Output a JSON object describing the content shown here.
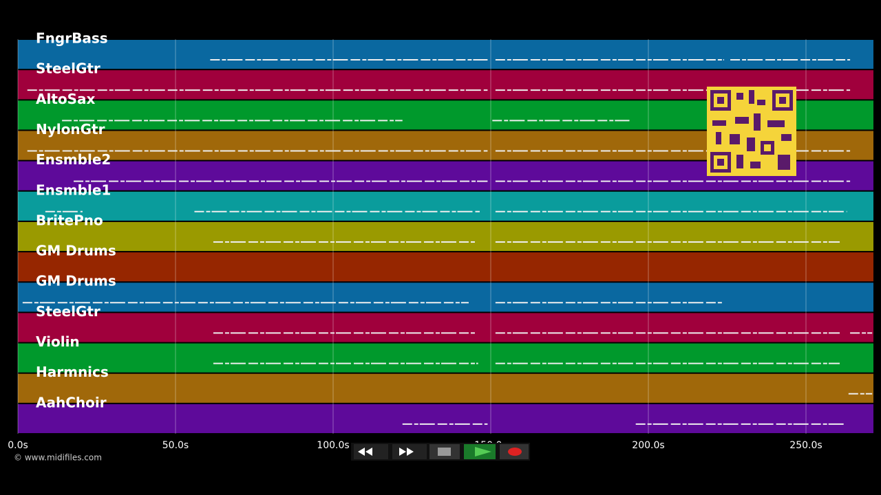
{
  "chart_data": {
    "type": "piano-roll",
    "xlim": [
      0,
      271.4
    ],
    "xticks": [
      {
        "value": 0,
        "label": "0.0s"
      },
      {
        "value": 50,
        "label": "50.0s"
      },
      {
        "value": 100,
        "label": "100.0s"
      },
      {
        "value": 150,
        "label": "150.0s"
      },
      {
        "value": 200,
        "label": "200.0s"
      },
      {
        "value": 250,
        "label": "250.0s"
      }
    ],
    "grid": true,
    "series": [
      {
        "name": "FngrBass",
        "color": "#0a68a0",
        "notes": [
          [
            61,
            149
          ],
          [
            151.5,
            224
          ],
          [
            226,
            264
          ]
        ]
      },
      {
        "name": "SteelGtr",
        "color": "#a0003c",
        "notes": [
          [
            3,
            149
          ],
          [
            151.5,
            264
          ]
        ]
      },
      {
        "name": "AltoSax",
        "color": "#00992c",
        "notes": [
          [
            14,
            122
          ],
          [
            150.5,
            194
          ]
        ]
      },
      {
        "name": "NylonGtr",
        "color": "#a0680a",
        "notes": [
          [
            3,
            149
          ],
          [
            151.5,
            264
          ]
        ]
      },
      {
        "name": "Ensmble2",
        "color": "#5e0a9a",
        "notes": [
          [
            17.7,
            149
          ],
          [
            151.5,
            264
          ]
        ]
      },
      {
        "name": "Ensmble1",
        "color": "#0a9c9c",
        "notes": [
          [
            8.7,
            20.5
          ],
          [
            56,
            146.5
          ],
          [
            151.5,
            263
          ]
        ]
      },
      {
        "name": "BritePno",
        "color": "#9a9a00",
        "notes": [
          [
            62,
            145
          ],
          [
            151.5,
            260.7
          ]
        ]
      },
      {
        "name": "GM Drums",
        "color": "#962600",
        "notes": []
      },
      {
        "name": "GM Drums",
        "color": "#0a68a0",
        "notes": [
          [
            1.5,
            143
          ],
          [
            151.5,
            223.6
          ]
        ]
      },
      {
        "name": "SteelGtr",
        "color": "#a0003c",
        "notes": [
          [
            62,
            145
          ],
          [
            151.5,
            260.7
          ],
          [
            264,
            271
          ]
        ]
      },
      {
        "name": "Violin",
        "color": "#00992c",
        "notes": [
          [
            62,
            146
          ],
          [
            151.5,
            260.7
          ]
        ]
      },
      {
        "name": "Harmnics",
        "color": "#a0680a",
        "notes": [
          [
            263.5,
            271
          ]
        ]
      },
      {
        "name": "AahChoir",
        "color": "#5e0a9a",
        "notes": [
          [
            122,
            149
          ],
          [
            196,
            262.5
          ]
        ]
      }
    ]
  },
  "watermark": "© www.midifiles.com"
}
